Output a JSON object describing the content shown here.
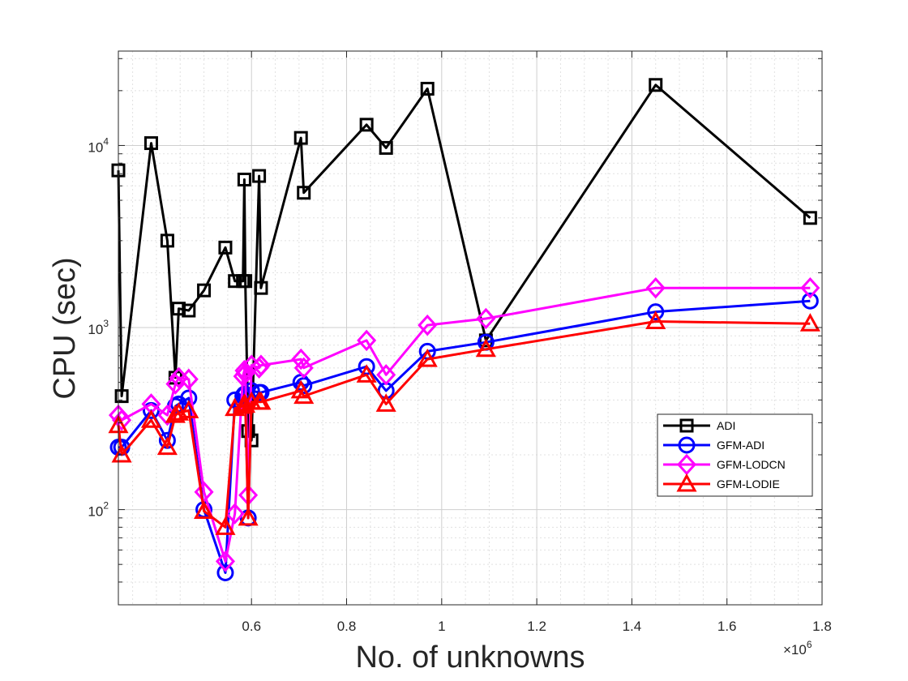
{
  "chart_data": {
    "type": "line",
    "xlabel": "No. of unknowns",
    "ylabel": "CPU (sec)",
    "x_exponent_label": "×10",
    "x_exponent_power": "6",
    "xscale": "linear",
    "yscale": "log",
    "xlim": [
      0.32,
      1.8
    ],
    "ylim": [
      30,
      33000
    ],
    "x_ticks": [
      0.6,
      0.8,
      1,
      1.2,
      1.4,
      1.6,
      1.8
    ],
    "x_tick_labels": [
      "0.6",
      "0.8",
      "1",
      "1.2",
      "1.4",
      "1.6",
      "1.8"
    ],
    "y_ticks": [
      100,
      1000,
      10000
    ],
    "y_tick_labels": [
      {
        "base": "10",
        "exp": "2"
      },
      {
        "base": "10",
        "exp": "3"
      },
      {
        "base": "10",
        "exp": "4"
      }
    ],
    "grid": true,
    "minor_grid": true,
    "legend_position": "lower-right",
    "series": [
      {
        "name": "ADI",
        "color": "#000000",
        "marker": "square",
        "x": [
          0.32,
          0.327,
          0.389,
          0.423,
          0.44,
          0.447,
          0.468,
          0.5,
          0.545,
          0.565,
          0.582,
          0.585,
          0.587,
          0.593,
          0.6,
          0.616,
          0.62,
          0.704,
          0.71,
          0.842,
          0.883,
          0.97,
          1.093,
          1.45,
          1.775
        ],
        "y": [
          7300,
          420,
          10300,
          3000,
          530,
          1270,
          1240,
          1600,
          2750,
          1800,
          1800,
          6500,
          1800,
          270,
          240,
          6800,
          1650,
          11000,
          5500,
          13000,
          9700,
          20500,
          850,
          21500,
          4000
        ]
      },
      {
        "name": "GFM-ADI",
        "color": "#0000ff",
        "marker": "circle",
        "x": [
          0.32,
          0.327,
          0.389,
          0.423,
          0.44,
          0.447,
          0.468,
          0.5,
          0.545,
          0.565,
          0.582,
          0.585,
          0.587,
          0.593,
          0.6,
          0.616,
          0.62,
          0.704,
          0.71,
          0.842,
          0.883,
          0.97,
          1.093,
          1.45,
          1.775
        ],
        "y": [
          220,
          220,
          350,
          240,
          370,
          380,
          410,
          100,
          45,
          400,
          420,
          430,
          430,
          90,
          450,
          440,
          440,
          500,
          480,
          610,
          450,
          740,
          830,
          1220,
          1400
        ]
      },
      {
        "name": "GFM-LODCN",
        "color": "#ff00ff",
        "marker": "diamond",
        "x": [
          0.32,
          0.327,
          0.389,
          0.423,
          0.44,
          0.447,
          0.468,
          0.5,
          0.545,
          0.565,
          0.582,
          0.585,
          0.587,
          0.593,
          0.6,
          0.616,
          0.62,
          0.704,
          0.71,
          0.842,
          0.883,
          0.97,
          1.093,
          1.45,
          1.775
        ],
        "y": [
          330,
          310,
          380,
          330,
          490,
          530,
          520,
          125,
          52,
          95,
          540,
          580,
          560,
          120,
          620,
          600,
          620,
          670,
          600,
          850,
          550,
          1030,
          1120,
          1650,
          1650
        ]
      },
      {
        "name": "GFM-LODIE",
        "color": "#ff0000",
        "marker": "triangle",
        "x": [
          0.32,
          0.327,
          0.389,
          0.423,
          0.44,
          0.447,
          0.468,
          0.5,
          0.545,
          0.565,
          0.582,
          0.585,
          0.587,
          0.593,
          0.6,
          0.616,
          0.62,
          0.704,
          0.71,
          0.842,
          0.883,
          0.97,
          1.093,
          1.45,
          1.775
        ],
        "y": [
          290,
          200,
          310,
          220,
          330,
          340,
          350,
          98,
          80,
          360,
          370,
          380,
          375,
          90,
          390,
          390,
          390,
          450,
          420,
          550,
          380,
          670,
          760,
          1080,
          1050
        ]
      }
    ]
  }
}
